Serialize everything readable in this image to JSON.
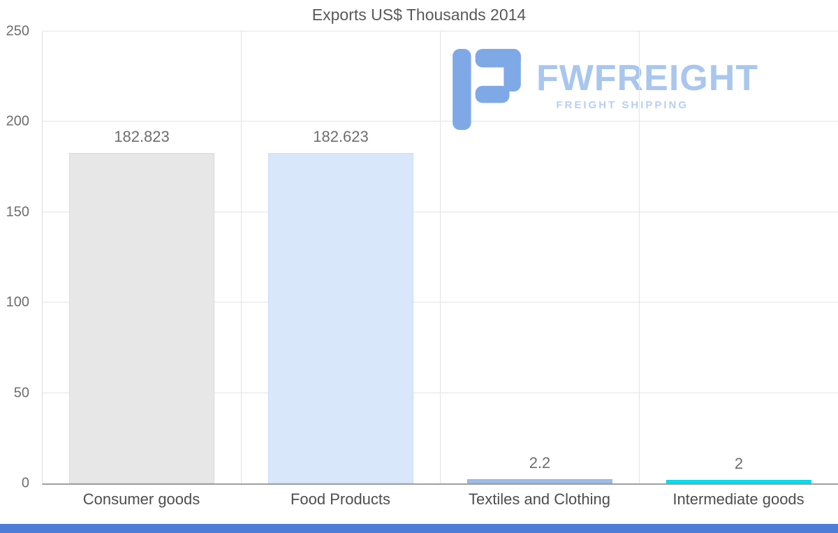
{
  "chart_data": {
    "type": "bar",
    "title": "Exports US$ Thousands 2014",
    "categories": [
      "Consumer goods",
      "Food Products",
      "Textiles and Clothing",
      "Intermediate goods"
    ],
    "values": [
      182.823,
      182.623,
      2.2,
      2
    ],
    "value_labels": [
      "182.823",
      "182.623",
      "2.2",
      "2"
    ],
    "bar_colors": [
      "#e7e7e7",
      "#d8e7fa",
      "#9fbde6",
      "#00e2f0"
    ],
    "bar_border_colors": [
      "#dadada",
      "#c9def6",
      "#8fb2e0",
      "#00d0e2"
    ],
    "xlabel": "",
    "ylabel": "",
    "ylim": [
      0,
      250
    ],
    "yticks": [
      0,
      50,
      100,
      150,
      200,
      250
    ],
    "grid": "on",
    "legend": "none"
  },
  "watermark": {
    "brand": "FWFREIGHT",
    "tagline": "FREIGHT SHIPPING",
    "brand_color": "#a9c6ee",
    "tagline_color": "#b9cff2",
    "icon_color": "#7fa9e6"
  },
  "footer": {
    "strip_color": "#4d7dd6"
  }
}
